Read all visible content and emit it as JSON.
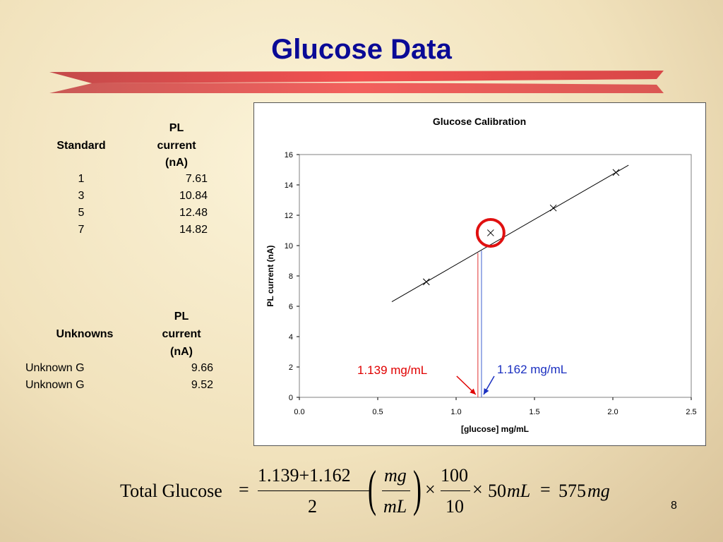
{
  "slide": {
    "title": "Glucose Data",
    "page_number": "8"
  },
  "standards_table": {
    "col1_header": "Standard",
    "col2_header": [
      "PL",
      "current",
      "(nA)"
    ],
    "rows": [
      {
        "label": "1",
        "value": "7.61"
      },
      {
        "label": "3",
        "value": "10.84"
      },
      {
        "label": "5",
        "value": "12.48"
      },
      {
        "label": "7",
        "value": "14.82"
      }
    ]
  },
  "unknowns_table": {
    "col1_header": "Unknowns",
    "col2_header": [
      "PL",
      "current",
      "(nA)"
    ],
    "rows": [
      {
        "label": "Unknown G",
        "value": "9.66"
      },
      {
        "label": "Unknown G",
        "value": "9.52"
      }
    ]
  },
  "chart_data": {
    "type": "scatter",
    "title": "Glucose Calibration",
    "xlabel": "[glucose] mg/mL",
    "ylabel": "PL current (nA)",
    "xlim": [
      0,
      2.5
    ],
    "ylim": [
      0,
      16
    ],
    "x_ticks": [
      "0.0",
      "0.5",
      "1.0",
      "1.5",
      "2.0",
      "2.5"
    ],
    "y_ticks": [
      "0",
      "2",
      "4",
      "6",
      "8",
      "10",
      "12",
      "14",
      "16"
    ],
    "grid": false,
    "series": [
      {
        "marker": "x",
        "points": [
          {
            "x": 0.81,
            "y": 7.61
          },
          {
            "x": 1.22,
            "y": 10.84
          },
          {
            "x": 1.62,
            "y": 12.48
          },
          {
            "x": 2.02,
            "y": 14.82
          }
        ]
      }
    ],
    "trendline": {
      "x1": 0.59,
      "y1": 6.3,
      "x2": 2.1,
      "y2": 15.3
    },
    "circled_point": {
      "x": 1.22,
      "y": 10.84
    },
    "reading_lines": [
      {
        "x": 1.139,
        "y": 9.52,
        "color": "#e03030"
      },
      {
        "x": 1.162,
        "y": 9.66,
        "color": "#4060d0"
      }
    ],
    "annotations": [
      {
        "text": "1.139 mg/mL",
        "color": "#e00000",
        "target_x": 1.139
      },
      {
        "text": "1.162 mg/mL",
        "color": "#1a2fc0",
        "target_x": 1.162
      }
    ]
  },
  "formula": {
    "lhs": "Total Glucose",
    "numerator1": "1.139+1.162",
    "denominator1": "2",
    "unit_num": "mg",
    "unit_den": "mL",
    "numerator2": "100",
    "denominator2": "10",
    "tail_value": "50",
    "tail_unit": "mL",
    "result_value": "575",
    "result_unit": "mg"
  },
  "colors": {
    "title": "#0a0a96",
    "accent_red": "#e84a4a",
    "circle": "#e01010"
  }
}
